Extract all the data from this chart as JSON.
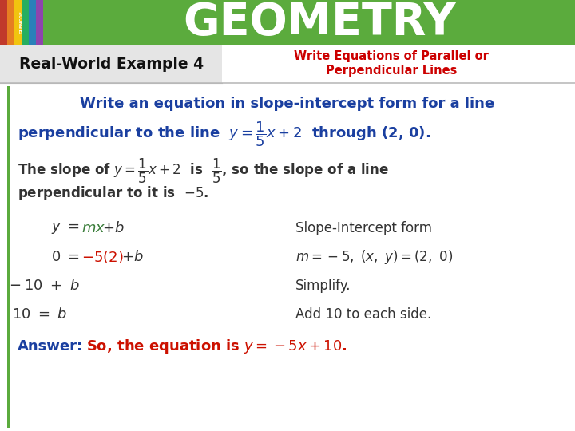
{
  "header_bg_color": "#5bab3d",
  "header_text": "GEOMETRY",
  "header_text_color": "#ffffff",
  "subheader_left_text": "Real-World Example 4",
  "subheader_right_line1": "Write Equations of Parallel or",
  "subheader_right_line2": "Perpendicular Lines",
  "subheader_right_color": "#cc0000",
  "blue_color": "#1a3fa0",
  "green_color": "#3a7d3a",
  "red_color": "#cc1100",
  "dark_color": "#333333",
  "answer_label_color": "#1a3fa0",
  "answer_text_color": "#cc1100"
}
